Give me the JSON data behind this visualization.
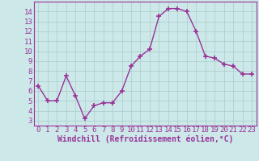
{
  "x": [
    0,
    1,
    2,
    3,
    4,
    5,
    6,
    7,
    8,
    9,
    10,
    11,
    12,
    13,
    14,
    15,
    16,
    17,
    18,
    19,
    20,
    21,
    22,
    23
  ],
  "y": [
    6.5,
    5.0,
    5.0,
    7.5,
    5.5,
    3.2,
    4.5,
    4.8,
    4.8,
    6.0,
    8.5,
    9.5,
    10.2,
    13.5,
    14.3,
    14.3,
    14.0,
    12.0,
    9.5,
    9.3,
    8.7,
    8.5,
    7.7,
    7.7
  ],
  "color": "#993399",
  "bg_color": "#cce8e8",
  "grid_color": "#aacccc",
  "xlabel": "Windchill (Refroidissement éolien,°C)",
  "ylim": [
    2.5,
    15.0
  ],
  "xlim": [
    -0.5,
    23.5
  ],
  "yticks": [
    3,
    4,
    5,
    6,
    7,
    8,
    9,
    10,
    11,
    12,
    13,
    14
  ],
  "xticks": [
    0,
    1,
    2,
    3,
    4,
    5,
    6,
    7,
    8,
    9,
    10,
    11,
    12,
    13,
    14,
    15,
    16,
    17,
    18,
    19,
    20,
    21,
    22,
    23
  ],
  "line_width": 1.0,
  "marker": "+",
  "marker_size": 4,
  "marker_edge_width": 1.2,
  "tick_font_size": 6.5,
  "label_font_size": 7.0
}
